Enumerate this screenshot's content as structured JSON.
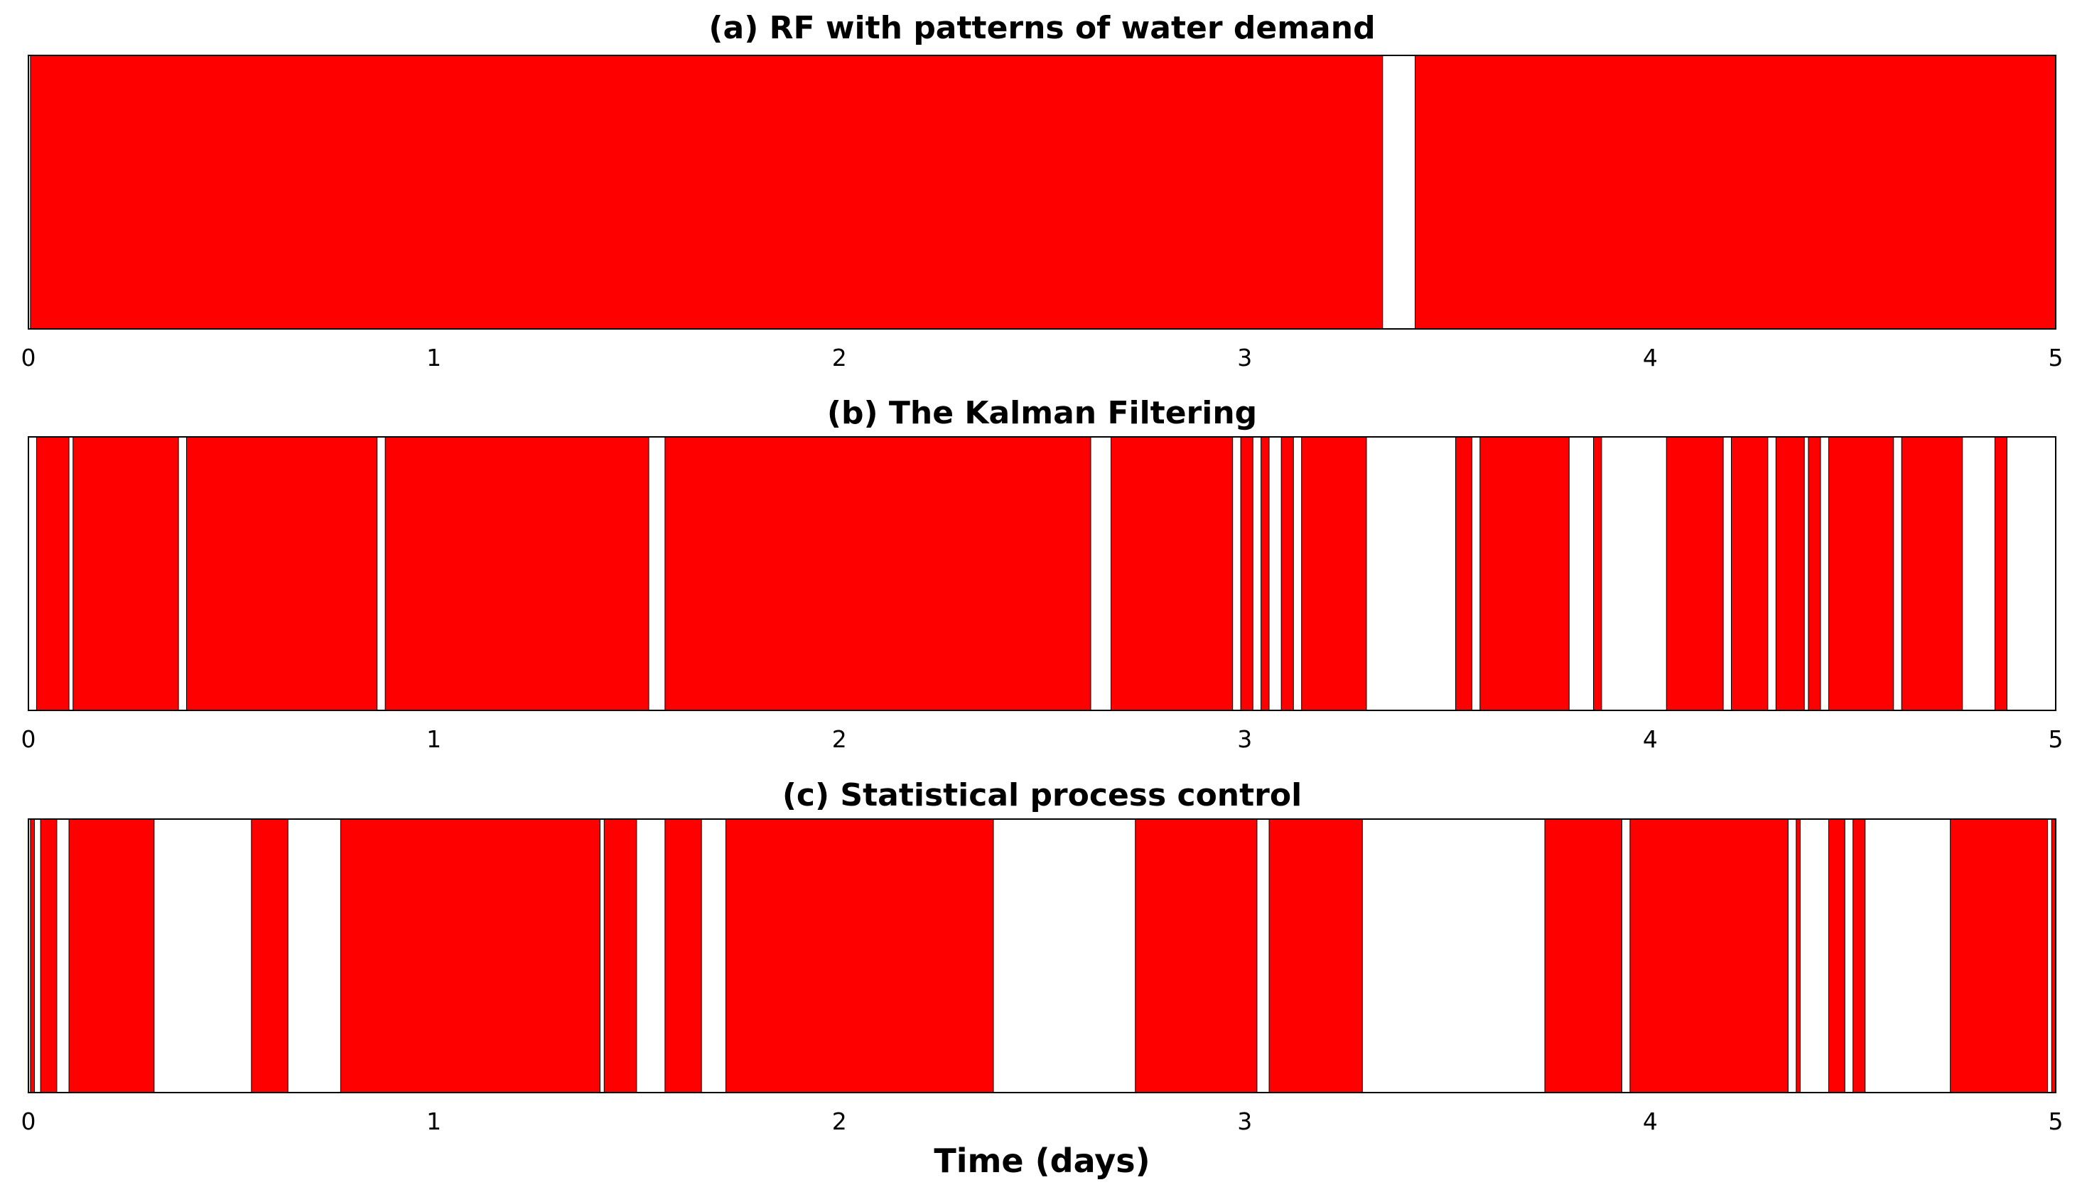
{
  "chart_data": [
    {
      "type": "area",
      "title": "(a) RF with patterns of water demand",
      "xlim": [
        0,
        5
      ],
      "xticks": [
        0,
        1,
        2,
        3,
        4,
        5
      ],
      "xlabel": "",
      "fill_color": "#ff0000",
      "detection_intervals": [
        [
          0.005,
          3.34
        ],
        [
          3.42,
          5.0
        ]
      ]
    },
    {
      "type": "area",
      "title": "(b) The Kalman Filtering",
      "xlim": [
        0,
        5
      ],
      "xticks": [
        0,
        1,
        2,
        3,
        4,
        5
      ],
      "xlabel": "",
      "fill_color": "#ff0000",
      "detection_intervals": [
        [
          0.02,
          0.1
        ],
        [
          0.11,
          0.37
        ],
        [
          0.39,
          0.86
        ],
        [
          0.88,
          1.53
        ],
        [
          1.57,
          2.62
        ],
        [
          2.67,
          2.97
        ],
        [
          2.99,
          3.02
        ],
        [
          3.04,
          3.06
        ],
        [
          3.09,
          3.12
        ],
        [
          3.14,
          3.3
        ],
        [
          3.52,
          3.56
        ],
        [
          3.58,
          3.8
        ],
        [
          3.86,
          3.88
        ],
        [
          4.04,
          4.18
        ],
        [
          4.2,
          4.29
        ],
        [
          4.31,
          4.38
        ],
        [
          4.39,
          4.42
        ],
        [
          4.44,
          4.6
        ],
        [
          4.62,
          4.77
        ],
        [
          4.85,
          4.88
        ]
      ]
    },
    {
      "type": "area",
      "title": "(c) Statistical process control",
      "xlim": [
        0,
        5
      ],
      "xticks": [
        0,
        1,
        2,
        3,
        4,
        5
      ],
      "xlabel": "Time (days)",
      "fill_color": "#ff0000",
      "detection_intervals": [
        [
          0.005,
          0.015
        ],
        [
          0.03,
          0.07
        ],
        [
          0.1,
          0.31
        ],
        [
          0.55,
          0.64
        ],
        [
          0.77,
          1.41
        ],
        [
          1.42,
          1.5
        ],
        [
          1.57,
          1.66
        ],
        [
          1.72,
          2.38
        ],
        [
          2.73,
          3.03
        ],
        [
          3.06,
          3.29
        ],
        [
          3.74,
          3.93
        ],
        [
          3.95,
          4.34
        ],
        [
          4.36,
          4.37
        ],
        [
          4.44,
          4.48
        ],
        [
          4.5,
          4.53
        ],
        [
          4.74,
          4.98
        ],
        [
          4.99,
          5.0
        ]
      ]
    }
  ]
}
